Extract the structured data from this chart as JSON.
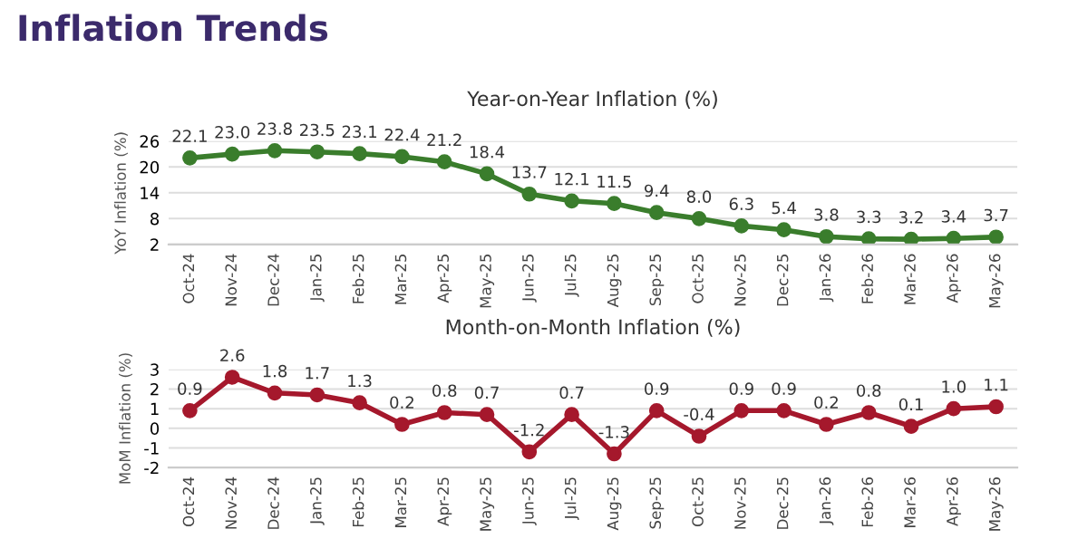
{
  "chart_data": [
    {
      "type": "line",
      "title": "Year-on-Year Inflation (%)",
      "ylabel": "YoY Inflation (%)",
      "annotations": [
        "Inflation Trends"
      ],
      "categories": [
        "Oct-24",
        "Nov-24",
        "Dec-24",
        "Jan-25",
        "Feb-25",
        "Mar-25",
        "Apr-25",
        "May-25",
        "Jun-25",
        "Jul-25",
        "Aug-25",
        "Sep-25",
        "Oct-25",
        "Nov-25",
        "Dec-25",
        "Jan-26",
        "Feb-26",
        "Mar-26",
        "Apr-26",
        "May-26"
      ],
      "series": [
        {
          "color": "#3a7d2c",
          "values": [
            22.1,
            23.0,
            23.8,
            23.5,
            23.1,
            22.4,
            21.2,
            18.4,
            13.7,
            12.1,
            11.5,
            9.4,
            8.0,
            6.3,
            5.4,
            3.8,
            3.3,
            3.2,
            3.4,
            3.7
          ],
          "value_labels": [
            "22.1",
            "23.0",
            "23.8",
            "23.5",
            "23.1",
            "22.4",
            "21.2",
            "18.4",
            "13.7",
            "12.1",
            "11.5",
            "9.4",
            "8.0",
            "6.3",
            "5.4",
            "3.8",
            "3.3",
            "3.2",
            "3.4",
            "3.7"
          ]
        }
      ],
      "ylim": [
        2,
        26
      ],
      "yticks": [
        2,
        8,
        14,
        20,
        26
      ],
      "grid": "y",
      "marker": "circle",
      "line_style": "solid",
      "legend": false
    },
    {
      "type": "line",
      "title": "Month-on-Month Inflation (%)",
      "ylabel": "MoM Inflation (%)",
      "categories": [
        "Oct-24",
        "Nov-24",
        "Dec-24",
        "Jan-25",
        "Feb-25",
        "Mar-25",
        "Apr-25",
        "May-25",
        "Jun-25",
        "Jul-25",
        "Aug-25",
        "Sep-25",
        "Oct-25",
        "Nov-25",
        "Dec-25",
        "Jan-26",
        "Feb-26",
        "Mar-26",
        "Apr-26",
        "May-26"
      ],
      "series": [
        {
          "color": "#a5182c",
          "values": [
            0.9,
            2.6,
            1.8,
            1.7,
            1.3,
            0.2,
            0.8,
            0.7,
            -1.2,
            0.7,
            -1.3,
            0.9,
            -0.4,
            0.9,
            0.9,
            0.2,
            0.8,
            0.1,
            1.0,
            1.1
          ],
          "value_labels": [
            "0.9",
            "2.6",
            "1.8",
            "1.7",
            "1.3",
            "0.2",
            "0.8",
            "0.7",
            "-1.2",
            "0.7",
            "-1.3",
            "0.9",
            "-0.4",
            "0.9",
            "0.9",
            "0.2",
            "0.8",
            "0.1",
            "1.0",
            "1.1"
          ]
        }
      ],
      "ylim": [
        -2,
        3
      ],
      "yticks": [
        -2,
        -1,
        0,
        1,
        2,
        3
      ],
      "grid": "y",
      "marker": "circle",
      "line_style": "solid",
      "legend": false
    }
  ]
}
